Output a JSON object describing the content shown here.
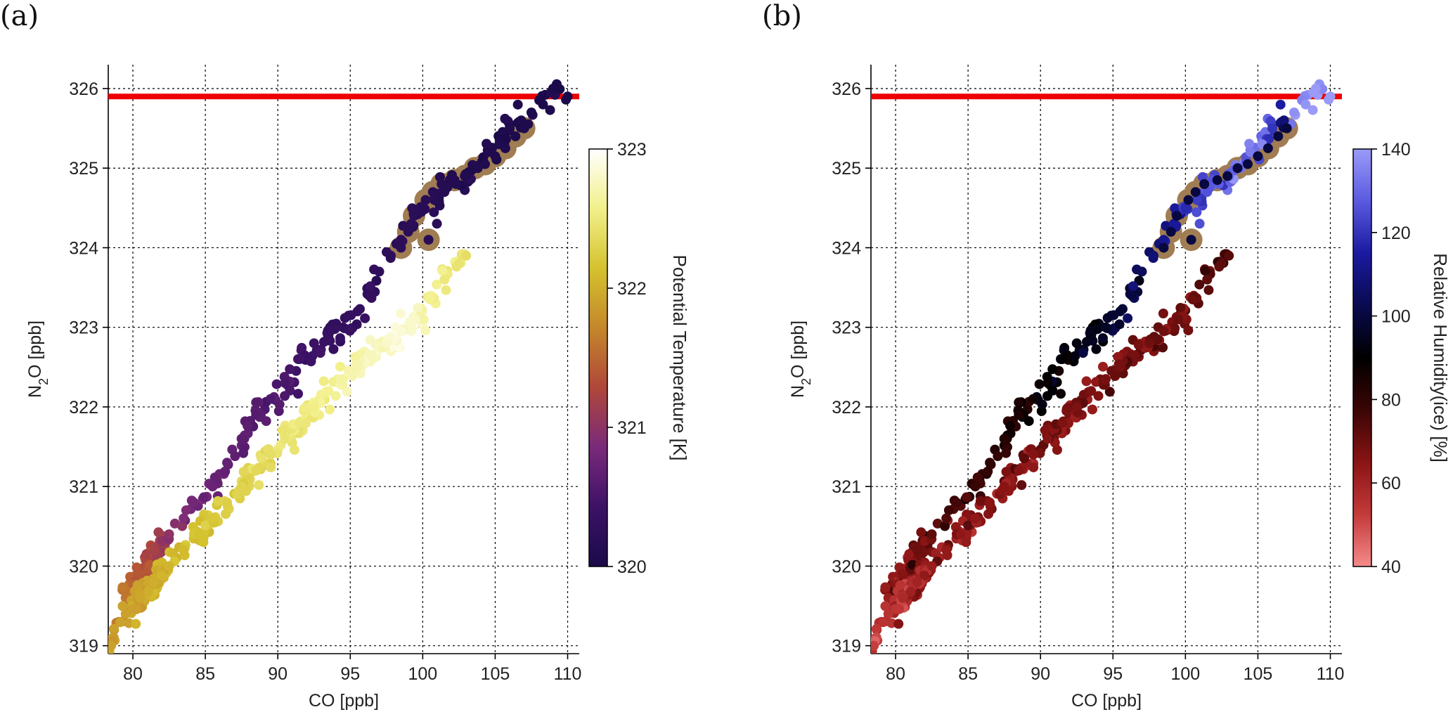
{
  "chart_data": [
    {
      "panel_label": "(a)",
      "type": "scatter",
      "xlabel": "CO [ppb]",
      "ylabel_main": "N",
      "ylabel_sub": "2",
      "ylabel_rest": "O [ppb]",
      "xlim": [
        78.3,
        110.8
      ],
      "ylim": [
        318.9,
        326.3
      ],
      "xticks": [
        80,
        85,
        90,
        95,
        100,
        105,
        110
      ],
      "yticks": [
        319,
        320,
        321,
        322,
        323,
        324,
        325,
        326
      ],
      "grid": true,
      "reference_line": {
        "y": 325.9,
        "color": "#ee0000"
      },
      "colorbar": {
        "label": "Potential Temperature [K]",
        "range": [
          320,
          323
        ],
        "ticks": [
          320,
          321,
          322,
          323
        ],
        "colormap": [
          "#1a0a4a",
          "#3d1266",
          "#7a2a7a",
          "#b0473a",
          "#c4872a",
          "#d4c22e",
          "#f2f08a",
          "#ffffff"
        ]
      },
      "highlight_color": "#a07d52",
      "series": [
        {
          "branch": "upper",
          "x": [
            78.7,
            79.5,
            80.5,
            81.5,
            82.5,
            83.5,
            84.2,
            85.5,
            86.5,
            87.5,
            88.5,
            89.5,
            90.5,
            91.5,
            92.5,
            93.5,
            94.5,
            95.5,
            96.3,
            97.0,
            97.8,
            98.5,
            99.2,
            100.0,
            100.8,
            101.5,
            102.3,
            103.0,
            103.8,
            104.5,
            105.3,
            106.0,
            106.8,
            107.5,
            108.3,
            109.0,
            110.0
          ],
          "y": [
            319.2,
            319.6,
            319.9,
            320.2,
            320.4,
            320.6,
            320.8,
            321.0,
            321.3,
            321.6,
            321.9,
            322.1,
            322.3,
            322.6,
            322.8,
            322.9,
            323.0,
            323.2,
            323.4,
            323.7,
            323.9,
            324.1,
            324.3,
            324.5,
            324.6,
            324.7,
            324.8,
            324.9,
            325.0,
            325.2,
            325.3,
            325.5,
            325.6,
            325.7,
            325.8,
            326.0,
            325.9
          ],
          "c": [
            321.7,
            321.6,
            321.4,
            321.2,
            321.0,
            320.9,
            320.8,
            320.75,
            320.7,
            320.65,
            320.6,
            320.55,
            320.5,
            320.45,
            320.4,
            320.35,
            320.32,
            320.3,
            320.28,
            320.26,
            320.24,
            320.22,
            320.2,
            320.18,
            320.16,
            320.14,
            320.12,
            320.1,
            320.09,
            320.08,
            320.07,
            320.06,
            320.05,
            320.04,
            320.03,
            320.02,
            320.01
          ]
        },
        {
          "branch": "lower",
          "x": [
            78.5,
            79.5,
            80.5,
            81.5,
            82.5,
            83.5,
            84.5,
            85.5,
            86.5,
            87.5,
            88.5,
            89.5,
            90.5,
            91.5,
            92.5,
            93.5,
            94.5,
            95.5,
            96.5,
            97.5,
            98.5,
            99.5,
            100.5,
            101.5,
            102.5,
            103.0
          ],
          "y": [
            319.0,
            319.4,
            319.6,
            319.8,
            320.0,
            320.2,
            320.4,
            320.6,
            320.8,
            321.0,
            321.2,
            321.4,
            321.6,
            321.8,
            322.0,
            322.2,
            322.35,
            322.5,
            322.65,
            322.8,
            322.95,
            323.1,
            323.35,
            323.6,
            323.8,
            323.9
          ],
          "c": [
            321.9,
            321.9,
            321.95,
            322.0,
            322.05,
            322.1,
            322.15,
            322.2,
            322.25,
            322.3,
            322.35,
            322.4,
            322.45,
            322.5,
            322.55,
            322.6,
            322.65,
            322.7,
            322.75,
            322.8,
            322.85,
            322.8,
            322.6,
            322.5,
            322.45,
            322.4
          ]
        }
      ],
      "highlighted_points": {
        "x": [
          98.5,
          99.0,
          99.4,
          100.2,
          100.7,
          101.3,
          102.2,
          102.9,
          103.6,
          104.3,
          105.0,
          105.7,
          106.4,
          107.0,
          100.4
        ],
        "y": [
          324.0,
          324.2,
          324.4,
          324.6,
          324.7,
          324.8,
          324.85,
          324.9,
          325.0,
          325.05,
          325.15,
          325.25,
          325.4,
          325.5,
          324.1
        ]
      }
    },
    {
      "panel_label": "(b)",
      "type": "scatter",
      "xlabel": "CO [ppb]",
      "ylabel_main": "N",
      "ylabel_sub": "2",
      "ylabel_rest": "O [ppb]",
      "xlim": [
        78.3,
        110.8
      ],
      "ylim": [
        318.9,
        326.3
      ],
      "xticks": [
        80,
        85,
        90,
        95,
        100,
        105,
        110
      ],
      "yticks": [
        319,
        320,
        321,
        322,
        323,
        324,
        325,
        326
      ],
      "grid": true,
      "reference_line": {
        "y": 325.9,
        "color": "#ee0000"
      },
      "colorbar": {
        "label": "Relative Humidity(ice) [%]",
        "range": [
          40,
          140
        ],
        "ticks": [
          40,
          60,
          80,
          100,
          120,
          140
        ],
        "colormap": [
          "#f58a8a",
          "#c43a3a",
          "#8a1414",
          "#3a0505",
          "#000000",
          "#0a0a50",
          "#1a1aa0",
          "#5a5ae0",
          "#9a9af8"
        ]
      },
      "highlight_color": "#a07d52",
      "series": [
        {
          "branch": "upper",
          "x": [
            78.7,
            79.5,
            80.5,
            81.5,
            82.5,
            83.5,
            84.2,
            85.5,
            86.5,
            87.5,
            88.5,
            89.5,
            90.5,
            91.5,
            92.5,
            93.5,
            94.5,
            95.5,
            96.3,
            97.0,
            97.8,
            98.5,
            99.2,
            100.0,
            100.8,
            101.5,
            102.3,
            103.0,
            103.8,
            104.5,
            105.3,
            106.0,
            106.8,
            107.5,
            108.3,
            109.0,
            110.0
          ],
          "y": [
            319.2,
            319.6,
            319.9,
            320.2,
            320.4,
            320.6,
            320.8,
            321.0,
            321.3,
            321.6,
            321.9,
            322.1,
            322.3,
            322.6,
            322.8,
            322.9,
            323.0,
            323.2,
            323.4,
            323.7,
            323.9,
            324.1,
            324.3,
            324.5,
            324.6,
            324.7,
            324.8,
            324.9,
            325.0,
            325.2,
            325.3,
            325.5,
            325.6,
            325.7,
            325.8,
            326.0,
            325.9
          ],
          "c": [
            60,
            62,
            66,
            70,
            72,
            74,
            76,
            78,
            80,
            82,
            84,
            86,
            88,
            90,
            92,
            94,
            96,
            98,
            100,
            104,
            108,
            112,
            114,
            118,
            122,
            126,
            128,
            130,
            132,
            134,
            136,
            120,
            108,
            138,
            139,
            140,
            140
          ]
        },
        {
          "branch": "lower",
          "x": [
            78.5,
            79.5,
            80.5,
            81.5,
            82.5,
            83.5,
            84.5,
            85.5,
            86.5,
            87.5,
            88.5,
            89.5,
            90.5,
            91.5,
            92.5,
            93.5,
            94.5,
            95.5,
            96.5,
            97.5,
            98.5,
            99.5,
            100.5,
            101.5,
            102.5,
            103.0
          ],
          "y": [
            319.0,
            319.4,
            319.6,
            319.8,
            320.0,
            320.2,
            320.4,
            320.6,
            320.8,
            321.0,
            321.2,
            321.4,
            321.6,
            321.8,
            322.0,
            322.2,
            322.35,
            322.5,
            322.65,
            322.8,
            322.95,
            323.1,
            323.35,
            323.6,
            323.8,
            323.9
          ],
          "c": [
            52,
            55,
            58,
            60,
            62,
            63,
            64,
            64,
            65,
            65,
            66,
            66,
            66,
            67,
            67,
            67,
            68,
            68,
            68,
            69,
            69,
            70,
            70,
            72,
            72,
            73
          ]
        }
      ],
      "highlighted_points": {
        "x": [
          98.5,
          99.0,
          99.4,
          100.2,
          100.7,
          101.3,
          102.2,
          102.9,
          103.6,
          104.3,
          105.0,
          105.7,
          106.4,
          107.0,
          100.4
        ],
        "y": [
          324.0,
          324.2,
          324.4,
          324.6,
          324.7,
          324.8,
          324.85,
          324.9,
          325.0,
          325.05,
          325.15,
          325.25,
          325.4,
          325.5,
          324.1
        ]
      },
      "highlight_fill_c": 100
    }
  ]
}
